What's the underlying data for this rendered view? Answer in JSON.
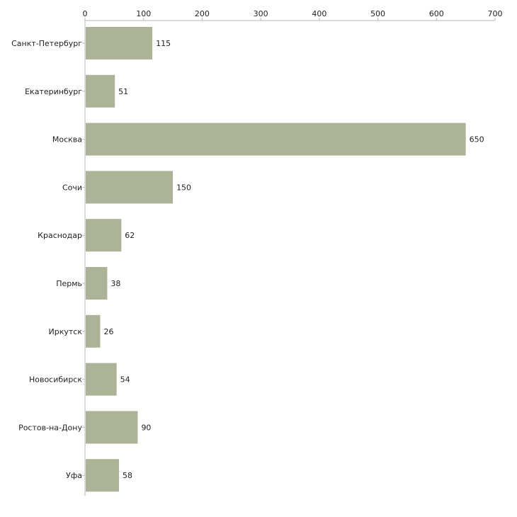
{
  "chart_data": {
    "type": "bar",
    "orientation": "horizontal",
    "title": "",
    "xlabel": "",
    "ylabel": "",
    "xlim": [
      0,
      700
    ],
    "x_ticks": [
      0,
      100,
      200,
      300,
      400,
      500,
      600,
      700
    ],
    "x_axis_position": "top",
    "grid": false,
    "bar_color": "#adb397",
    "categories": [
      "Санкт-Петербург",
      "Екатеринбург",
      "Москва",
      "Сочи",
      "Краснодар",
      "Пермь",
      "Иркутск",
      "Новосибирск",
      "Ростов-на-Дону",
      "Уфа"
    ],
    "values": [
      115,
      51,
      650,
      150,
      62,
      38,
      26,
      54,
      90,
      58
    ]
  }
}
